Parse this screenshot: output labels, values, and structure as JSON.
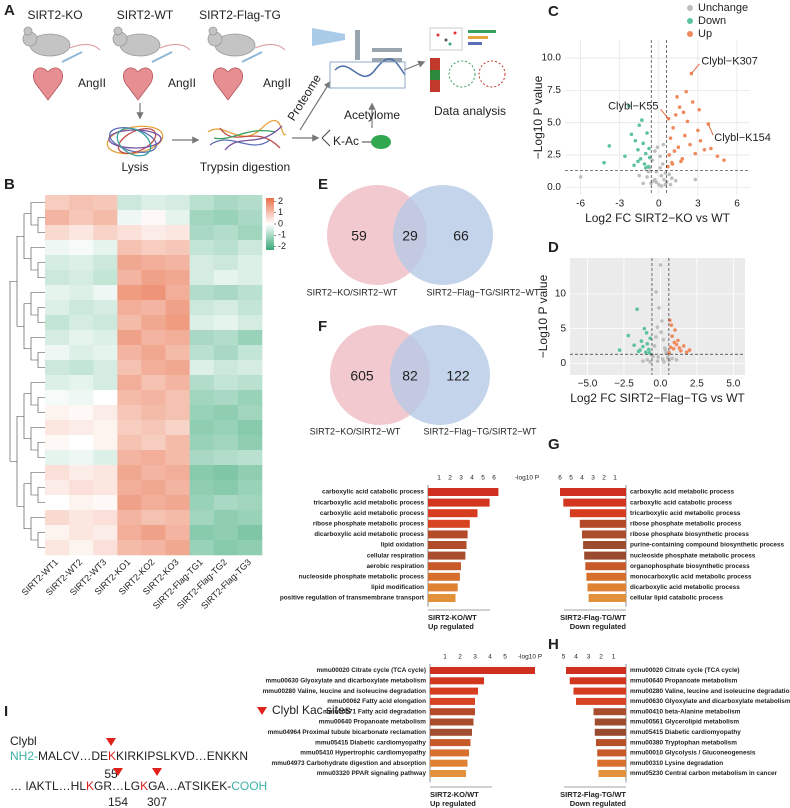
{
  "panel_labels": [
    "A",
    "B",
    "C",
    "D",
    "E",
    "F",
    "G",
    "H",
    "I"
  ],
  "workflow": {
    "groups": [
      {
        "name": "SIRT2-KO",
        "treatment": "AngII"
      },
      {
        "name": "SIRT2-WT",
        "treatment": "AngII"
      },
      {
        "name": "SIRT2-Flag-TG",
        "treatment": "AngII"
      }
    ],
    "steps": {
      "lysis": "Lysis",
      "digestion": "Trypsin digestion",
      "proteome": "Proteome",
      "acetylome": "Acetylome",
      "modification": "K-Ac",
      "analysis": "Data analysis"
    }
  },
  "chart_data": [
    {
      "type": "heatmap",
      "categories": [
        "SIRT2-WT1",
        "SIRT2-WT2",
        "SIRT2-WT3",
        "SIRT2-KO1",
        "SIRT2-KO2",
        "SIRT2-KO3",
        "SIRT2-Flag-TG1",
        "SIRT2-Flag-TG2",
        "SIRT2-Flag-TG3"
      ],
      "values": [
        [
          0.8,
          1.0,
          0.9,
          -0.6,
          -0.4,
          -0.5,
          -0.8,
          -1.0,
          -0.9
        ],
        [
          1.2,
          0.9,
          1.1,
          -0.2,
          0.1,
          -0.3,
          -1.1,
          -1.2,
          -1.0
        ],
        [
          0.6,
          0.4,
          0.7,
          0.5,
          0.3,
          0.4,
          -1.0,
          -0.9,
          -1.1
        ],
        [
          -0.2,
          -0.1,
          -0.3,
          1.0,
          0.8,
          0.9,
          -0.7,
          -0.8,
          -0.6
        ],
        [
          -0.5,
          -0.4,
          -0.6,
          1.4,
          1.3,
          1.2,
          -0.5,
          -0.6,
          -0.4
        ],
        [
          -0.6,
          -0.5,
          -0.7,
          1.2,
          1.5,
          1.4,
          -0.5,
          -0.3,
          -0.4
        ],
        [
          -0.3,
          -0.4,
          -0.2,
          1.6,
          1.7,
          1.3,
          -0.9,
          -1.0,
          -0.8
        ],
        [
          -0.4,
          -0.6,
          -0.5,
          1.3,
          1.2,
          1.5,
          -0.6,
          -0.5,
          -0.7
        ],
        [
          -0.7,
          -0.5,
          -0.6,
          1.1,
          1.4,
          1.6,
          -0.4,
          -0.3,
          -0.5
        ],
        [
          -0.5,
          -0.3,
          -0.4,
          1.5,
          1.2,
          1.3,
          -1.0,
          -0.9,
          -1.2
        ],
        [
          -0.2,
          -0.4,
          -0.3,
          1.2,
          1.4,
          1.1,
          -0.8,
          -1.0,
          -0.7
        ],
        [
          -0.6,
          -0.7,
          -0.5,
          1.0,
          1.3,
          1.4,
          -0.4,
          -0.6,
          -0.5
        ],
        [
          -0.4,
          -0.3,
          -0.5,
          1.3,
          1.0,
          1.2,
          -0.9,
          -0.7,
          -0.8
        ],
        [
          -0.1,
          -0.2,
          0.0,
          1.1,
          1.2,
          1.0,
          -1.1,
          -1.0,
          -1.2
        ],
        [
          0.2,
          0.1,
          0.3,
          0.9,
          1.1,
          1.0,
          -1.2,
          -1.3,
          -1.1
        ],
        [
          0.4,
          0.3,
          0.2,
          0.8,
          0.9,
          0.7,
          -1.3,
          -1.2,
          -1.4
        ],
        [
          0.1,
          0.0,
          0.2,
          1.0,
          0.8,
          1.1,
          -1.2,
          -1.1,
          -1.3
        ],
        [
          -0.3,
          -0.2,
          -0.4,
          1.2,
          1.3,
          1.1,
          -1.0,
          -0.9,
          -0.8
        ],
        [
          0.5,
          0.3,
          0.4,
          1.4,
          1.2,
          1.3,
          -1.4,
          -1.5,
          -1.3
        ],
        [
          0.3,
          0.5,
          0.4,
          1.3,
          1.4,
          1.2,
          -1.3,
          -1.4,
          -1.2
        ],
        [
          0.0,
          0.2,
          0.1,
          1.5,
          1.3,
          1.4,
          -1.2,
          -1.0,
          -1.1
        ],
        [
          0.6,
          0.4,
          0.5,
          1.2,
          1.0,
          1.1,
          -1.1,
          -1.3,
          -1.2
        ],
        [
          0.2,
          0.4,
          0.3,
          1.3,
          1.5,
          1.2,
          -1.4,
          -1.3,
          -1.5
        ],
        [
          0.4,
          0.2,
          0.5,
          1.1,
          1.2,
          1.4,
          -1.2,
          -1.4,
          -1.3
        ]
      ],
      "clim": [
        -2.3,
        2.3
      ],
      "colorbar_ticks": [
        2,
        1,
        0,
        -1,
        -2
      ],
      "colors": [
        "#3aa877",
        "#ffffff",
        "#e8704a"
      ]
    },
    {
      "type": "scatter",
      "x_label": "Log2 FC SIRT2−KO vs WT",
      "y_label": "−Log10 P value",
      "xlim": [
        -7.2,
        7
      ],
      "ylim": [
        -0.6,
        11.4
      ],
      "xticks": [
        -6,
        -3,
        0,
        3,
        6
      ],
      "yticks": [
        {
          "value": 0,
          "label": "0.0"
        },
        {
          "value": 2.5,
          "label": "2.5"
        },
        {
          "value": 5,
          "label": "5.0"
        },
        {
          "value": 7.5,
          "label": "7.5"
        },
        {
          "value": 10,
          "label": "10.0"
        }
      ],
      "grid": true,
      "background": "#ffffff",
      "grid_color": "#e6e6e6",
      "legend": "top",
      "thresholds": {
        "x": [
          -0.58,
          0.58
        ],
        "y": 1.3
      },
      "series": [
        {
          "name": "Unchange",
          "color": "#bdbdbd",
          "x": [
            -1.2,
            -0.9,
            -0.7,
            -0.5,
            -0.4,
            -0.3,
            -0.2,
            -0.1,
            0,
            0.1,
            0.2,
            0.3,
            0.4,
            0.5,
            0.6,
            0.8,
            1.0,
            -0.6,
            -0.3,
            0.2,
            0.5,
            -1.5,
            1.3,
            -6,
            0.9,
            -0.8,
            0.1,
            -0.2,
            0.35,
            2.8
          ],
          "values": [
            0.3,
            0.8,
            1.5,
            2.1,
            0.5,
            2.8,
            1.2,
            3.1,
            0.2,
            2.4,
            0.9,
            1.8,
            0.6,
            1.1,
            0.4,
            1.0,
            0.7,
            0.3,
            0.6,
            0.1,
            0.2,
            0.9,
            0.5,
            0.8,
            0.2,
            1.2,
            1.5,
            0.4,
            3.3,
            0.6
          ]
        },
        {
          "name": "Down",
          "color": "#5cc3a0",
          "x": [
            -3.8,
            -2.3,
            -2.1,
            -1.8,
            -1.6,
            -1.5,
            -1.4,
            -1.2,
            -1.1,
            -1.0,
            -0.9,
            -0.8,
            -0.7,
            -2.6,
            -1.9,
            -1.3,
            -4.2,
            -1.0,
            -0.75,
            -1.6
          ],
          "values": [
            3.2,
            6.3,
            4.1,
            3.6,
            2.9,
            4.8,
            2.2,
            3.4,
            1.8,
            2.6,
            4.2,
            1.6,
            2.3,
            2.4,
            1.7,
            5.2,
            1.9,
            1.5,
            3.0,
            2.0
          ]
        },
        {
          "name": "Up",
          "color": "#f08a5d",
          "x": [
            0.7,
            0.8,
            0.9,
            1.0,
            1.1,
            1.2,
            1.3,
            1.5,
            1.6,
            1.8,
            2.0,
            2.2,
            2.4,
            2.6,
            2.8,
            3.0,
            3.2,
            3.5,
            3.8,
            4.0,
            4.5,
            5.0,
            1.4,
            1.9,
            2.5,
            0.75,
            1.05,
            2.1,
            3.1,
            1.7
          ],
          "values": [
            1.6,
            2.5,
            3.8,
            1.9,
            4.6,
            2.8,
            5.6,
            3.1,
            6.2,
            2.2,
            4.0,
            5.1,
            3.3,
            6.6,
            2.6,
            4.4,
            3.6,
            2.9,
            4.9,
            3.0,
            2.4,
            2.1,
            7.0,
            5.8,
            8.8,
            5.3,
            1.8,
            7.4,
            6.0,
            2.0
          ]
        }
      ],
      "annotations": [
        {
          "text": "Clybl−K307",
          "x": 2.5,
          "y": 8.8,
          "color": "#e8693c"
        },
        {
          "text": "Clybl−K55",
          "x": 0.75,
          "y": 5.3,
          "color": "#e8693c"
        },
        {
          "text": "Clybl−K154",
          "x": 3.8,
          "y": 4.9,
          "color": "#e8693c"
        }
      ]
    },
    {
      "type": "scatter",
      "x_label": "Log2 FC SIRT2−Flag−TG vs WT",
      "y_label": "−Log10 P value",
      "xlim": [
        -6.2,
        5.8
      ],
      "ylim": [
        -1.7,
        15.2
      ],
      "xticks": [
        {
          "value": -5,
          "label": "−5.0"
        },
        {
          "value": -2.5,
          "label": "−2.5"
        },
        {
          "value": 0,
          "label": "0.0"
        },
        {
          "value": 2.5,
          "label": "2.5"
        },
        {
          "value": 5,
          "label": "5.0"
        }
      ],
      "yticks": [
        0,
        5,
        10
      ],
      "grid": true,
      "background": "#ebebeb",
      "grid_color": "#ffffff",
      "legend": "none",
      "thresholds": {
        "x": [
          -0.58,
          0.58
        ],
        "y": 1.3
      },
      "series": [
        {
          "name": "Unchange",
          "color": "#bdbdbd",
          "x": [
            -0.9,
            -0.6,
            -0.4,
            -0.3,
            -0.2,
            -0.1,
            0,
            0.1,
            0.2,
            0.3,
            0.4,
            0.5,
            0.6,
            -0.5,
            -0.2,
            0.15,
            0.35,
            -0.7,
            0.8,
            -0.3,
            0.05,
            -0.15,
            0.25,
            -1.2,
            1.1
          ],
          "values": [
            0.5,
            1.2,
            2.5,
            3.8,
            5.2,
            8.0,
            14.2,
            6.1,
            3.4,
            2.2,
            1.5,
            0.8,
            0.4,
            1.0,
            0.3,
            0.6,
            1.9,
            0.2,
            0.7,
            10.3,
            4.5,
            0.9,
            0.2,
            0.3,
            0.5
          ]
        },
        {
          "name": "Down",
          "color": "#5cc3a0",
          "x": [
            -2.2,
            -1.8,
            -1.6,
            -1.4,
            -1.3,
            -1.2,
            -1.1,
            -1.0,
            -0.9,
            -0.8,
            -0.7,
            -1.5,
            -0.95,
            -0.75,
            -2.8
          ],
          "values": [
            4.0,
            2.6,
            7.8,
            1.9,
            3.2,
            2.4,
            5.0,
            1.6,
            2.8,
            2.0,
            3.6,
            1.7,
            4.4,
            1.5,
            1.9
          ]
        },
        {
          "name": "Up",
          "color": "#f08a5d",
          "x": [
            0.6,
            0.7,
            0.8,
            0.9,
            1.0,
            1.1,
            1.2,
            1.4,
            1.6,
            1.8,
            0.75,
            0.95,
            1.3,
            2.0,
            0.65
          ],
          "values": [
            1.5,
            2.3,
            3.9,
            2.1,
            4.8,
            2.7,
            3.3,
            1.8,
            2.5,
            1.6,
            5.5,
            3.0,
            2.2,
            1.9,
            6.2
          ]
        }
      ]
    },
    {
      "type": "venn",
      "sets": [
        "SIRT2−KO/SIRT2−WT",
        "SIRT2−Flag−TG/SIRT2−WT"
      ],
      "values": [
        59,
        29,
        66
      ],
      "colors": [
        "#efbcc2",
        "#b5c9e6"
      ]
    },
    {
      "type": "venn",
      "sets": [
        "SIRT2−KO/SIRT2−WT",
        "SIRT2−Flag−TG/SIRT2−WT"
      ],
      "values": [
        605,
        82,
        122
      ],
      "colors": [
        "#efbcc2",
        "#b5c9e6"
      ]
    },
    {
      "type": "mirrored-bar",
      "axis_label": "-log10 P",
      "panels": [
        {
          "group": "SIRT2-KO/WT",
          "direction": "Up regulated",
          "xlim": [
            0,
            7
          ],
          "xticks": [
            1,
            2,
            3,
            4,
            5,
            6
          ],
          "categories": [
            "carboxylic acid catabolic process",
            "tricarboxylic acid metabolic process",
            "carboxylic acid metabolic process",
            "ribose phosphate metabolic process",
            "dicarboxylic acid metabolic process",
            "lipid oxidation",
            "cellular respiration",
            "aerobic respiration",
            "nucleoside phosphate metabolic process",
            "lipid modification",
            "positive regulation of transmembrane transport"
          ],
          "values": [
            6.4,
            5.6,
            4.5,
            3.8,
            3.6,
            3.5,
            3.4,
            3.0,
            2.9,
            2.7,
            2.5
          ],
          "colors": [
            "#cf2f1e",
            "#d3361f",
            "#d63c20",
            "#d84322",
            "#b54a28",
            "#b04c2a",
            "#a94d2c",
            "#c85a2a",
            "#d7702f",
            "#df8234",
            "#e3903a"
          ]
        },
        {
          "group": "SIRT2-Flag-TG/WT",
          "direction": "Down regulated",
          "xlim": [
            0,
            7
          ],
          "xticks": [
            6,
            5,
            4,
            3,
            2,
            1
          ],
          "categories": [
            "carboxylic acid metabolic process",
            "carboxylic acid catabolic process",
            "tricarboxylic acid metabolic process",
            "ribose phosphate metabolic process",
            "ribose phosphate biosynthetic process",
            "purine-containing compound biosynthetic process",
            "nucleoside phosphate metabolic process",
            "organophosphate biosynthetic process",
            "monocarboxylic acid metabolic process",
            "dicarboxylic acid metabolic process",
            "cellular lipid catabolic process"
          ],
          "values": [
            6.0,
            5.7,
            5.1,
            4.2,
            4.0,
            3.9,
            3.8,
            3.7,
            3.6,
            3.5,
            3.4
          ],
          "colors": [
            "#cf2f1e",
            "#d3361f",
            "#d63c20",
            "#b54a28",
            "#a94d2c",
            "#9e4c2e",
            "#9a4b2f",
            "#c85a2a",
            "#d7702f",
            "#df8234",
            "#e3903a"
          ]
        }
      ]
    },
    {
      "type": "mirrored-bar",
      "axis_label": "-log10 P",
      "panels": [
        {
          "group": "SIRT2-KO/WT",
          "direction": "Up regulated",
          "xlim": [
            0,
            7
          ],
          "xticks": [
            1,
            2,
            3,
            4,
            5
          ],
          "categories": [
            "mmu00020 Citrate cycle (TCA cycle)",
            "mmu00630 Glyoxylate and dicarboxylate metabolism",
            "mmu00280 Valine, leucine and isoleucine degradation",
            "mmu00062 Fatty acid elongation",
            "mmu00071 Fatty acid degradation",
            "mmu00640 Propanoate metabolism",
            "mmu04964 Proximal tubule bicarbonate reclamation",
            "mmu05415 Diabetic cardiomyopathy",
            "mmu05410 Hypertrophic cardiomyopathy",
            "mmu04973 Carbohydrate digestion and absorption",
            "mmu03320 PPAR signaling pathway"
          ],
          "values": [
            7.0,
            3.6,
            3.2,
            3.0,
            3.0,
            2.9,
            2.8,
            2.7,
            2.6,
            2.5,
            2.4
          ],
          "colors": [
            "#cf2f1e",
            "#d3361f",
            "#d63c20",
            "#d84322",
            "#b54a28",
            "#a94d2c",
            "#a14e2e",
            "#c85a2a",
            "#d7702f",
            "#df8234",
            "#e3903a"
          ]
        },
        {
          "group": "SIRT2-Flag-TG/WT",
          "direction": "Down regulated",
          "xlim": [
            0,
            6
          ],
          "xticks": [
            5,
            4,
            3,
            2,
            1
          ],
          "categories": [
            "mmu00020 Citrate cycle (TCA cycle)",
            "mmu00640 Propanoate metabolism",
            "mmu00280 Valine, leucine and isoleucine degradation",
            "mmu00630 Glyoxylate and dicarboxylate metabolism",
            "mmu00410 beta-Alanine metabolism",
            "mmu00561 Glycerolipid metabolism",
            "mmu05415 Diabetic cardiomyopathy",
            "mmu00380 Tryptophan metabolism",
            "mmu00010 Glycolysis / Gluconeogenesis",
            "mmu00310 Lysine degradation",
            "mmu05230 Central carbon metabolism in cancer"
          ],
          "values": [
            4.8,
            4.5,
            4.2,
            4.0,
            2.6,
            2.5,
            2.5,
            2.4,
            2.3,
            2.3,
            2.2
          ],
          "colors": [
            "#cf2f1e",
            "#d3361f",
            "#d63c20",
            "#d84322",
            "#a94d2c",
            "#9e4c2e",
            "#9a4b2f",
            "#b65128",
            "#c85a2a",
            "#d7702f",
            "#e3903a"
          ]
        }
      ]
    }
  ],
  "sequence": {
    "protein": "Clybl",
    "legend": "Clybl Kac sites",
    "site_color": "#e0201b",
    "lines": [
      [
        {
          "text": "NH2-",
          "color": "#3bb3a6"
        },
        {
          "text": "MALCV…DE"
        },
        {
          "text": "K",
          "color": "#e0201b"
        },
        {
          "text": "KIRKIPSLKVD…ENKKN"
        }
      ],
      [
        {
          "text": "… IAKTL…HL"
        },
        {
          "text": "K",
          "color": "#e0201b"
        },
        {
          "text": "GR…LG"
        },
        {
          "text": "K",
          "color": "#e0201b"
        },
        {
          "text": "GA…ATSIKEK-"
        },
        {
          "text": "COOH",
          "color": "#3bb3a6"
        }
      ]
    ],
    "sites": [
      55,
      154,
      307
    ]
  }
}
